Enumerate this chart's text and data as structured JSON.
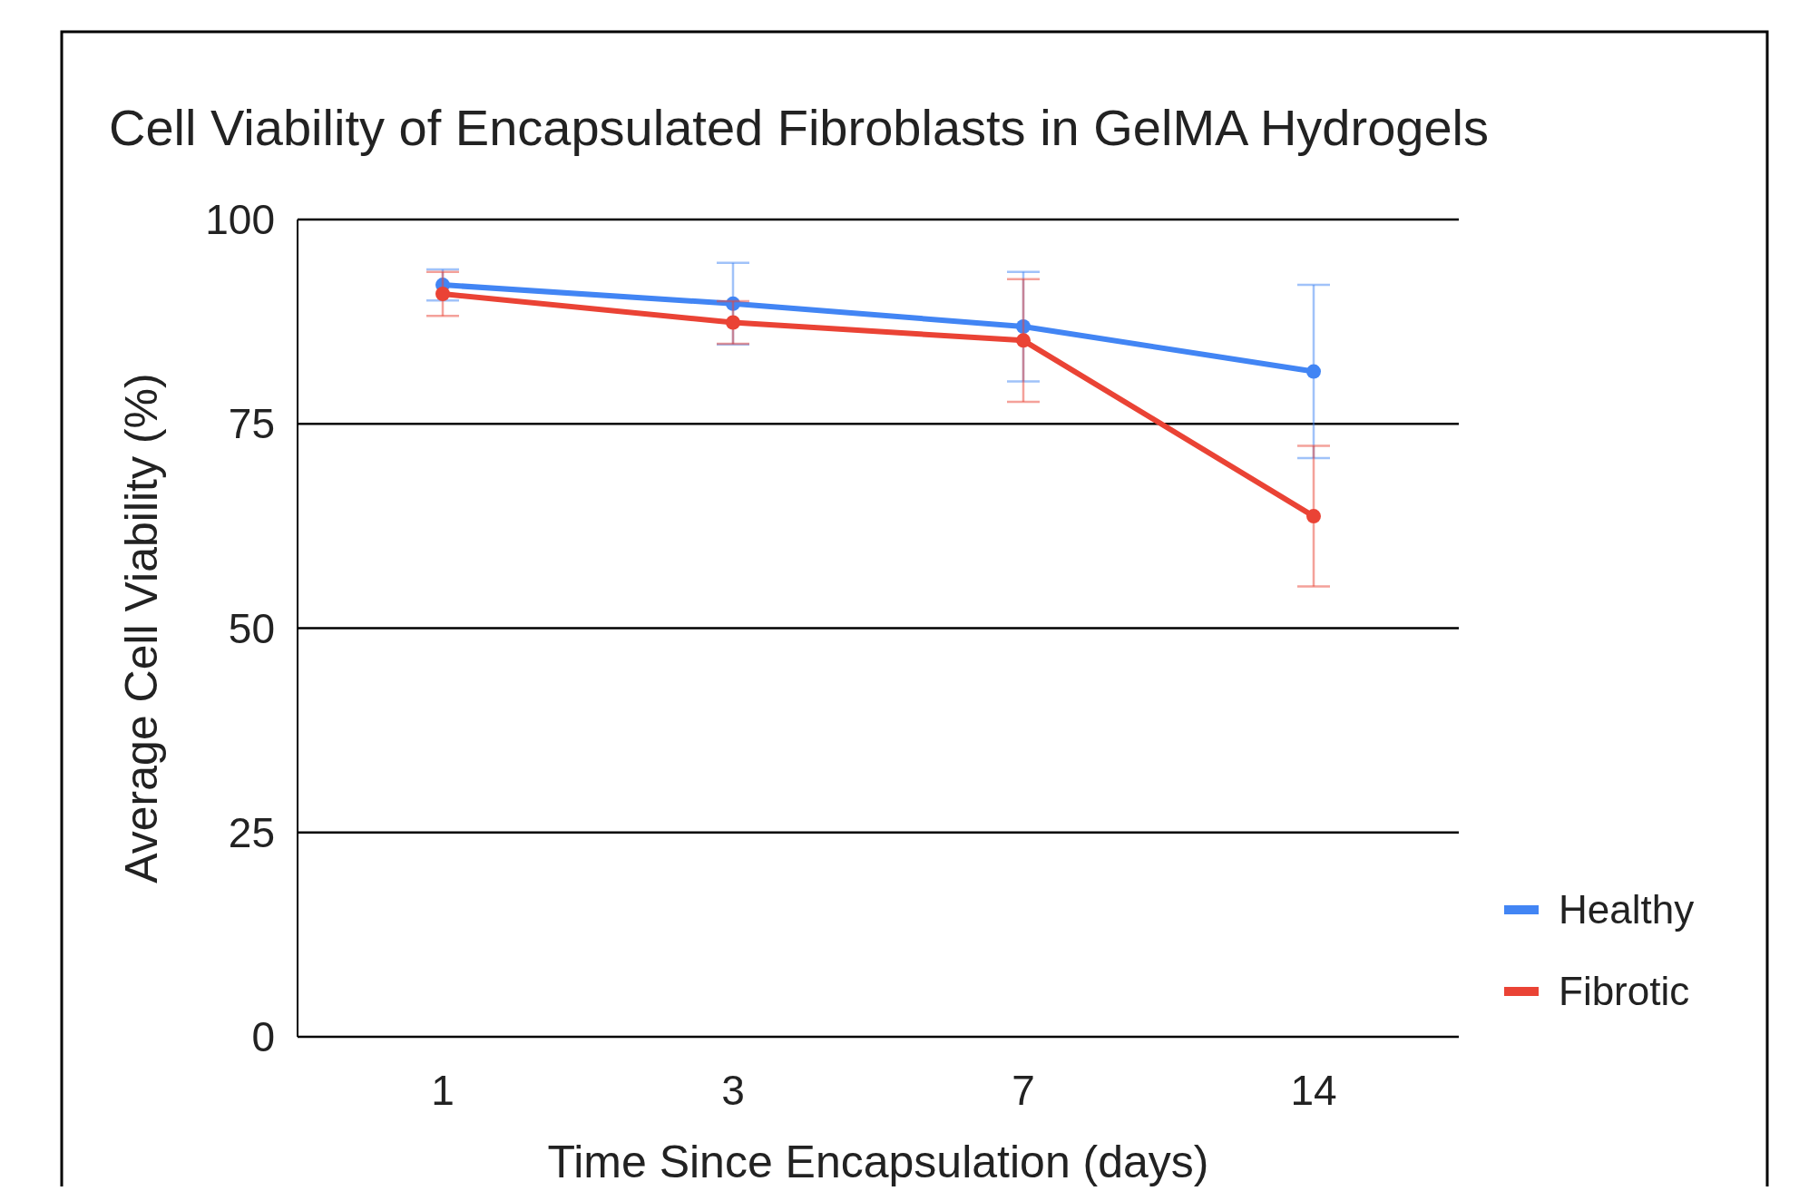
{
  "chart_data": {
    "type": "line",
    "title": "Cell Viability of Encapsulated Fibroblasts in GelMA Hydrogels",
    "xlabel": "Time Since Encapsulation (days)",
    "ylabel": "Average Cell Viability (%)",
    "categories": [
      "1",
      "3",
      "7",
      "14"
    ],
    "series": [
      {
        "name": "Healthy",
        "color": "#4285f4",
        "values": [
          92.0,
          89.7,
          86.9,
          81.4
        ],
        "errors": [
          1.9,
          5.0,
          6.7,
          10.6
        ]
      },
      {
        "name": "Fibrotic",
        "color": "#ea4335",
        "values": [
          90.9,
          87.4,
          85.2,
          63.7
        ],
        "errors": [
          2.7,
          2.6,
          7.5,
          8.6
        ]
      }
    ],
    "ylim": [
      0,
      100
    ],
    "yticks": [
      0,
      25,
      50,
      75,
      100
    ],
    "grid": "y",
    "legend": "right",
    "marker": "circle",
    "line_style": "solid"
  }
}
